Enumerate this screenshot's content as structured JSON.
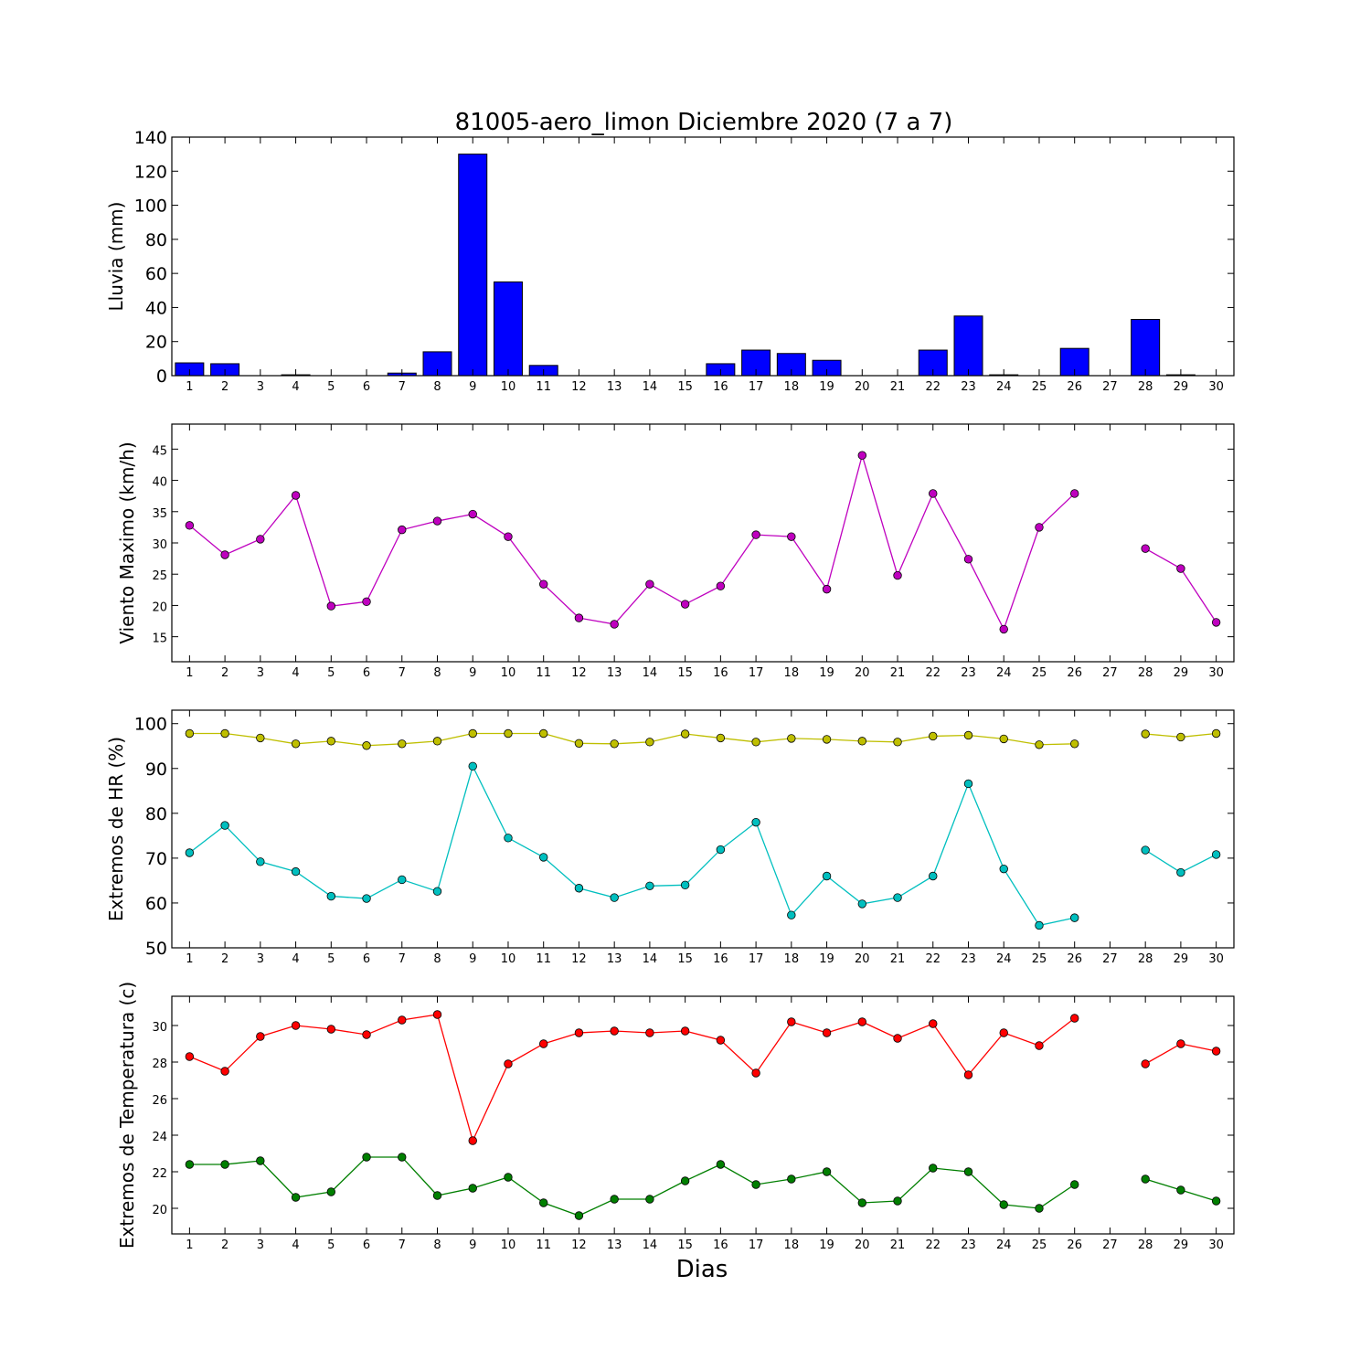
{
  "figure": {
    "title": "81005-aero_limon Diciembre 2020  (7 a 7)",
    "xlabel": "Dias"
  },
  "chart_data": [
    {
      "type": "bar",
      "ylabel": "Lluvia (mm)",
      "ylim": [
        0,
        140
      ],
      "yticks": [
        0,
        20,
        40,
        60,
        80,
        100,
        120,
        140
      ],
      "xlim": [
        0.5,
        30.5
      ],
      "categories": [
        1,
        2,
        3,
        4,
        5,
        6,
        7,
        8,
        9,
        10,
        11,
        12,
        13,
        14,
        15,
        16,
        17,
        18,
        19,
        20,
        21,
        22,
        23,
        24,
        25,
        26,
        27,
        28,
        29,
        30
      ],
      "values": [
        7.5,
        7,
        0,
        0.5,
        0,
        0,
        1.5,
        14,
        130,
        55,
        6,
        0,
        0,
        0,
        0,
        7,
        15,
        13,
        9,
        0,
        0,
        15,
        35,
        0.5,
        0,
        16,
        0,
        33,
        0.5,
        0
      ],
      "color": "#0000ff",
      "grid": false
    },
    {
      "type": "line",
      "ylabel": "Viento Maximo (km/h)",
      "ylim": [
        11,
        49
      ],
      "yticks": [
        15,
        20,
        25,
        30,
        35,
        40,
        45
      ],
      "xlim": [
        0.5,
        30.5
      ],
      "x": [
        1,
        2,
        3,
        4,
        5,
        6,
        7,
        8,
        9,
        10,
        11,
        12,
        13,
        14,
        15,
        16,
        17,
        18,
        19,
        20,
        21,
        22,
        23,
        24,
        25,
        26,
        27,
        28,
        29,
        30
      ],
      "series": [
        {
          "color": "#bf00bf",
          "values": [
            32.8,
            28.1,
            30.6,
            37.6,
            19.9,
            20.6,
            32.1,
            33.5,
            34.6,
            31.0,
            23.4,
            18.0,
            17.0,
            23.4,
            20.2,
            23.1,
            31.3,
            31.0,
            22.6,
            44.0,
            24.8,
            37.9,
            27.4,
            16.2,
            32.5,
            37.9,
            null,
            29.1,
            25.9,
            17.3
          ]
        }
      ],
      "grid": false
    },
    {
      "type": "line",
      "ylabel": "Extremos de HR (%)",
      "ylim": [
        50,
        103
      ],
      "yticks": [
        50,
        60,
        70,
        80,
        90,
        100
      ],
      "xlim": [
        0.5,
        30.5
      ],
      "x": [
        1,
        2,
        3,
        4,
        5,
        6,
        7,
        8,
        9,
        10,
        11,
        12,
        13,
        14,
        15,
        16,
        17,
        18,
        19,
        20,
        21,
        22,
        23,
        24,
        25,
        26,
        27,
        28,
        29,
        30
      ],
      "series": [
        {
          "color": "#bfbf00",
          "values": [
            97.8,
            97.8,
            96.8,
            95.5,
            96.1,
            95.1,
            95.5,
            96.1,
            97.8,
            97.8,
            97.8,
            95.6,
            95.5,
            95.9,
            97.7,
            96.8,
            95.9,
            96.7,
            96.5,
            96.1,
            95.9,
            97.2,
            97.4,
            96.6,
            95.3,
            95.5,
            null,
            97.7,
            97.0,
            97.8
          ]
        },
        {
          "color": "#00bfbf",
          "values": [
            71.2,
            77.3,
            69.2,
            67.0,
            61.5,
            61.0,
            65.2,
            62.6,
            90.5,
            74.5,
            70.2,
            63.3,
            61.2,
            63.8,
            64.0,
            71.9,
            78.0,
            57.3,
            66.0,
            59.8,
            61.2,
            66.0,
            86.6,
            67.6,
            55.0,
            56.7,
            null,
            71.8,
            66.8,
            70.8
          ]
        }
      ],
      "grid": false
    },
    {
      "type": "line",
      "ylabel": "Extremos de Temperatura (c)",
      "ylim": [
        18.6,
        31.6
      ],
      "yticks": [
        20,
        22,
        24,
        26,
        28,
        30
      ],
      "xlim": [
        0.5,
        30.5
      ],
      "x": [
        1,
        2,
        3,
        4,
        5,
        6,
        7,
        8,
        9,
        10,
        11,
        12,
        13,
        14,
        15,
        16,
        17,
        18,
        19,
        20,
        21,
        22,
        23,
        24,
        25,
        26,
        27,
        28,
        29,
        30
      ],
      "series": [
        {
          "color": "#ff0000",
          "values": [
            28.3,
            27.5,
            29.4,
            30.0,
            29.8,
            29.5,
            30.3,
            30.6,
            23.7,
            27.9,
            29.0,
            29.6,
            29.7,
            29.6,
            29.7,
            29.2,
            27.4,
            30.2,
            29.6,
            30.2,
            29.3,
            30.1,
            27.3,
            29.6,
            28.9,
            30.4,
            null,
            27.9,
            29.0,
            28.6
          ]
        },
        {
          "color": "#007f00",
          "values": [
            22.4,
            22.4,
            22.6,
            20.6,
            20.9,
            22.8,
            22.8,
            20.7,
            21.1,
            21.7,
            20.3,
            19.6,
            20.5,
            20.5,
            21.5,
            22.4,
            21.3,
            21.6,
            22.0,
            20.3,
            20.4,
            22.2,
            22.0,
            20.2,
            20.0,
            21.3,
            null,
            21.6,
            21.0,
            20.4
          ]
        }
      ],
      "grid": false
    }
  ]
}
